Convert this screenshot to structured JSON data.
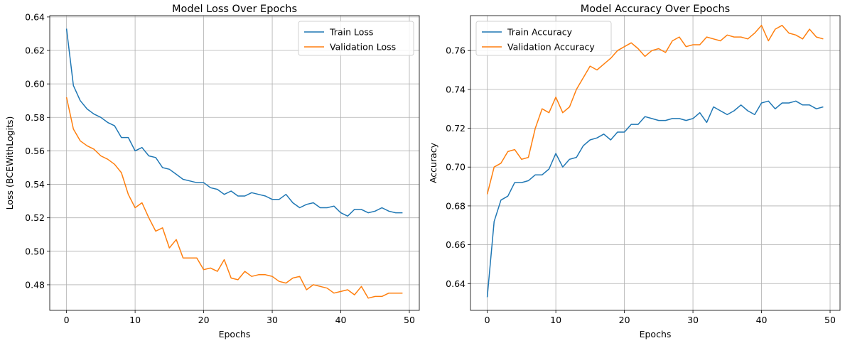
{
  "chart_data": [
    {
      "type": "line",
      "title": "Model Loss Over Epochs",
      "xlabel": "Epochs",
      "ylabel": "Loss (BCEWithLogits)",
      "xlim": [
        -2.45,
        51.45
      ],
      "ylim": [
        0.4647,
        0.6408
      ],
      "xticks": [
        0,
        10,
        20,
        30,
        40,
        50
      ],
      "yticks": [
        0.48,
        0.5,
        0.52,
        0.54,
        0.56,
        0.58,
        0.6,
        0.62,
        0.64
      ],
      "ytick_labels": [
        "0.48",
        "0.50",
        "0.52",
        "0.54",
        "0.56",
        "0.58",
        "0.60",
        "0.62",
        "0.64"
      ],
      "grid": true,
      "legend": "upper right",
      "x": [
        0,
        1,
        2,
        3,
        4,
        5,
        6,
        7,
        8,
        9,
        10,
        11,
        12,
        13,
        14,
        15,
        16,
        17,
        18,
        19,
        20,
        21,
        22,
        23,
        24,
        25,
        26,
        27,
        28,
        29,
        30,
        31,
        32,
        33,
        34,
        35,
        36,
        37,
        38,
        39,
        40,
        41,
        42,
        43,
        44,
        45,
        46,
        47,
        48,
        49
      ],
      "series": [
        {
          "name": "Train Loss",
          "color": "#1f77b4",
          "values": [
            0.633,
            0.599,
            0.59,
            0.585,
            0.582,
            0.58,
            0.577,
            0.575,
            0.568,
            0.568,
            0.56,
            0.562,
            0.557,
            0.556,
            0.55,
            0.549,
            0.546,
            0.543,
            0.542,
            0.541,
            0.541,
            0.538,
            0.537,
            0.534,
            0.536,
            0.533,
            0.533,
            0.535,
            0.534,
            0.533,
            0.531,
            0.531,
            0.534,
            0.529,
            0.526,
            0.528,
            0.529,
            0.526,
            0.526,
            0.527,
            0.523,
            0.521,
            0.525,
            0.525,
            0.523,
            0.524,
            0.526,
            0.524,
            0.523,
            0.523
          ]
        },
        {
          "name": "Validation Loss",
          "color": "#ff7f0e",
          "values": [
            0.592,
            0.573,
            0.566,
            0.563,
            0.561,
            0.557,
            0.555,
            0.552,
            0.547,
            0.534,
            0.526,
            0.529,
            0.52,
            0.512,
            0.514,
            0.502,
            0.507,
            0.496,
            0.496,
            0.496,
            0.489,
            0.49,
            0.488,
            0.495,
            0.484,
            0.483,
            0.488,
            0.485,
            0.486,
            0.486,
            0.485,
            0.482,
            0.481,
            0.484,
            0.485,
            0.477,
            0.48,
            0.479,
            0.478,
            0.475,
            0.476,
            0.477,
            0.474,
            0.479,
            0.472,
            0.473,
            0.473,
            0.475,
            0.475,
            0.475
          ]
        }
      ]
    },
    {
      "type": "line",
      "title": "Model Accuracy Over Epochs",
      "xlabel": "Epochs",
      "ylabel": "Accuracy",
      "xlim": [
        -2.45,
        51.45
      ],
      "ylim": [
        0.6262,
        0.778
      ],
      "xticks": [
        0,
        10,
        20,
        30,
        40,
        50
      ],
      "yticks": [
        0.64,
        0.66,
        0.68,
        0.7,
        0.72,
        0.74,
        0.76
      ],
      "ytick_labels": [
        "0.64",
        "0.66",
        "0.68",
        "0.70",
        "0.72",
        "0.74",
        "0.76"
      ],
      "grid": true,
      "legend": "upper left",
      "x": [
        0,
        1,
        2,
        3,
        4,
        5,
        6,
        7,
        8,
        9,
        10,
        11,
        12,
        13,
        14,
        15,
        16,
        17,
        18,
        19,
        20,
        21,
        22,
        23,
        24,
        25,
        26,
        27,
        28,
        29,
        30,
        31,
        32,
        33,
        34,
        35,
        36,
        37,
        38,
        39,
        40,
        41,
        42,
        43,
        44,
        45,
        46,
        47,
        48,
        49
      ],
      "series": [
        {
          "name": "Train Accuracy",
          "color": "#1f77b4",
          "values": [
            0.633,
            0.672,
            0.683,
            0.685,
            0.692,
            0.692,
            0.693,
            0.696,
            0.696,
            0.699,
            0.707,
            0.7,
            0.704,
            0.705,
            0.711,
            0.714,
            0.715,
            0.717,
            0.714,
            0.718,
            0.718,
            0.722,
            0.722,
            0.726,
            0.725,
            0.724,
            0.724,
            0.725,
            0.725,
            0.724,
            0.725,
            0.728,
            0.723,
            0.731,
            0.729,
            0.727,
            0.729,
            0.732,
            0.729,
            0.727,
            0.733,
            0.734,
            0.73,
            0.733,
            0.733,
            0.734,
            0.732,
            0.732,
            0.73,
            0.731
          ]
        },
        {
          "name": "Validation Accuracy",
          "color": "#ff7f0e",
          "values": [
            0.686,
            0.7,
            0.702,
            0.708,
            0.709,
            0.704,
            0.705,
            0.72,
            0.73,
            0.728,
            0.736,
            0.728,
            0.731,
            0.74,
            0.746,
            0.752,
            0.75,
            0.753,
            0.756,
            0.76,
            0.762,
            0.764,
            0.761,
            0.757,
            0.76,
            0.761,
            0.759,
            0.765,
            0.767,
            0.762,
            0.763,
            0.763,
            0.767,
            0.766,
            0.765,
            0.768,
            0.767,
            0.767,
            0.766,
            0.769,
            0.773,
            0.765,
            0.771,
            0.773,
            0.769,
            0.768,
            0.766,
            0.771,
            0.767,
            0.766
          ]
        }
      ]
    }
  ]
}
